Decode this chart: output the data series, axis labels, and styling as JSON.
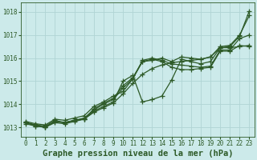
{
  "title": "Graphe pression niveau de la mer (hPa)",
  "bg_color": "#cceaea",
  "grid_color": "#b0d4d4",
  "line_color": "#2d5a27",
  "ylim": [
    1012.6,
    1018.4
  ],
  "xlim": [
    -0.5,
    23.5
  ],
  "yticks": [
    1013,
    1014,
    1015,
    1016,
    1017,
    1018
  ],
  "xticks": [
    0,
    1,
    2,
    3,
    4,
    5,
    6,
    7,
    8,
    9,
    10,
    11,
    12,
    13,
    14,
    15,
    16,
    17,
    18,
    19,
    20,
    21,
    22,
    23
  ],
  "lines": [
    {
      "x": [
        0,
        1,
        2,
        3,
        4,
        5,
        6,
        7,
        8,
        9,
        10,
        11,
        12,
        13,
        14,
        15,
        16,
        17,
        18,
        19,
        20,
        21,
        22,
        23
      ],
      "y": [
        1013.15,
        1013.05,
        1013.0,
        1013.2,
        1013.15,
        1013.25,
        1013.35,
        1013.65,
        1013.85,
        1014.05,
        1014.45,
        1014.9,
        1015.3,
        1015.55,
        1015.7,
        1015.8,
        1015.85,
        1015.9,
        1015.95,
        1016.05,
        1016.45,
        1016.5,
        1016.95,
        1018.05
      ]
    },
    {
      "x": [
        0,
        1,
        2,
        3,
        4,
        5,
        6,
        7,
        8,
        9,
        10,
        11,
        12,
        13,
        14,
        15,
        16,
        17,
        18,
        19,
        20,
        21,
        22,
        23
      ],
      "y": [
        1013.2,
        1013.1,
        1013.0,
        1013.25,
        1013.2,
        1013.3,
        1013.4,
        1013.75,
        1014.0,
        1014.2,
        1014.7,
        1015.1,
        1015.9,
        1016.0,
        1015.9,
        1015.75,
        1015.7,
        1015.65,
        1015.6,
        1015.65,
        1016.35,
        1016.35,
        1016.85,
        1017.0
      ]
    },
    {
      "x": [
        0,
        1,
        2,
        3,
        4,
        5,
        6,
        7,
        8,
        9,
        10,
        11,
        12,
        13,
        14,
        15,
        16,
        17,
        18,
        19,
        20,
        21,
        22,
        23
      ],
      "y": [
        1013.2,
        1013.1,
        1013.05,
        1013.3,
        1013.2,
        1013.3,
        1013.35,
        1013.7,
        1013.9,
        1014.1,
        1015.0,
        1015.25,
        1014.1,
        1014.2,
        1014.35,
        1015.05,
        1015.95,
        1015.85,
        1015.75,
        1015.85,
        1016.45,
        1016.45,
        1016.5,
        1016.55
      ]
    },
    {
      "x": [
        0,
        1,
        2,
        3,
        4,
        5,
        6,
        7,
        8,
        9,
        10,
        11,
        12,
        13,
        14,
        15,
        16,
        17,
        18,
        19,
        20,
        21,
        22,
        23
      ],
      "y": [
        1013.2,
        1013.05,
        1013.0,
        1013.25,
        1013.2,
        1013.3,
        1013.35,
        1013.8,
        1014.05,
        1014.25,
        1014.8,
        1015.15,
        1015.85,
        1015.95,
        1015.85,
        1015.6,
        1015.5,
        1015.5,
        1015.55,
        1015.6,
        1016.3,
        1016.3,
        1016.55,
        1016.5
      ]
    },
    {
      "x": [
        0,
        1,
        2,
        3,
        4,
        5,
        6,
        7,
        8,
        9,
        10,
        11,
        12,
        13,
        14,
        15,
        16,
        17,
        18,
        19,
        20,
        21,
        22,
        23
      ],
      "y": [
        1013.25,
        1013.15,
        1013.1,
        1013.35,
        1013.3,
        1013.4,
        1013.5,
        1013.9,
        1014.1,
        1014.35,
        1014.55,
        1015.1,
        1015.85,
        1015.9,
        1016.0,
        1015.85,
        1016.05,
        1016.0,
        1015.95,
        1016.05,
        1016.5,
        1016.55,
        1017.0,
        1017.85
      ]
    }
  ],
  "marker": "+",
  "markersize": 4,
  "linewidth": 0.9,
  "title_fontsize": 7.5,
  "tick_fontsize": 5.5
}
